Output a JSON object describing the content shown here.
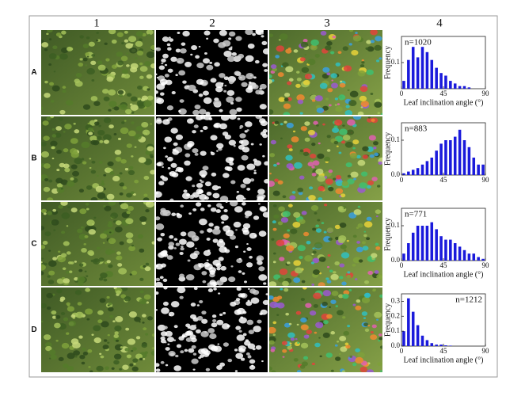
{
  "column_labels": [
    "1",
    "2",
    "3",
    "4"
  ],
  "row_labels": [
    "A",
    "B",
    "C",
    "D"
  ],
  "chart_data": [
    {
      "type": "histogram",
      "annotation": "n=1020",
      "annotation_position": "upper left",
      "color": "#1a1adb",
      "bins": [
        0,
        5,
        10,
        15,
        20,
        25,
        30,
        35,
        40,
        45,
        50,
        55,
        60,
        65,
        70,
        75,
        80,
        85,
        90
      ],
      "values": [
        0.03,
        0.11,
        0.16,
        0.12,
        0.16,
        0.14,
        0.11,
        0.08,
        0.06,
        0.05,
        0.03,
        0.02,
        0.01,
        0.01,
        0.005,
        0,
        0,
        0
      ],
      "xlim": [
        0,
        90
      ],
      "xticks": [
        0,
        45,
        90
      ],
      "ylim": [
        0,
        0.2
      ],
      "yticks": [
        0.1
      ],
      "xlabel": "Leaf inclination angle (°)",
      "ylabel": "Frequency"
    },
    {
      "type": "histogram",
      "annotation": "n=883",
      "annotation_position": "upper left",
      "color": "#1a1adb",
      "bins": [
        0,
        5,
        10,
        15,
        20,
        25,
        30,
        35,
        40,
        45,
        50,
        55,
        60,
        65,
        70,
        75,
        80,
        85,
        90
      ],
      "values": [
        0.005,
        0.01,
        0.015,
        0.02,
        0.03,
        0.04,
        0.05,
        0.07,
        0.09,
        0.1,
        0.1,
        0.11,
        0.13,
        0.1,
        0.08,
        0.05,
        0.03,
        0.03
      ],
      "xlim": [
        0,
        90
      ],
      "xticks": [
        0,
        45,
        90
      ],
      "ylim": [
        0,
        0.15
      ],
      "yticks": [
        {
          "value": 0,
          "label": "0.0"
        },
        0.1
      ],
      "ylabel": "Frequency"
    },
    {
      "type": "histogram",
      "annotation": "n=771",
      "annotation_position": "upper left",
      "color": "#1a1adb",
      "bins": [
        0,
        5,
        10,
        15,
        20,
        25,
        30,
        35,
        40,
        45,
        50,
        55,
        60,
        65,
        70,
        75,
        80,
        85,
        90
      ],
      "values": [
        0.02,
        0.05,
        0.08,
        0.1,
        0.1,
        0.1,
        0.11,
        0.09,
        0.07,
        0.06,
        0.06,
        0.05,
        0.04,
        0.03,
        0.02,
        0.02,
        0.01,
        0.005
      ],
      "xlim": [
        0,
        90
      ],
      "xticks": [
        0,
        45,
        90
      ],
      "ylim": [
        0,
        0.15
      ],
      "yticks": [
        {
          "value": 0,
          "label": "0.0"
        },
        0.1
      ],
      "xlabel": "Leaf inclination angle (°)",
      "ylabel": "Frequency"
    },
    {
      "type": "histogram",
      "annotation": "n=1212",
      "annotation_position": "upper right",
      "color": "#1a1adb",
      "bins": [
        0,
        5,
        10,
        15,
        20,
        25,
        30,
        35,
        40,
        45,
        50,
        55,
        60,
        65,
        70,
        75,
        80,
        85,
        90
      ],
      "values": [
        0.1,
        0.32,
        0.23,
        0.14,
        0.07,
        0.04,
        0.02,
        0.01,
        0.01,
        0.005,
        0.003,
        0,
        0,
        0,
        0,
        0,
        0,
        0
      ],
      "xlim": [
        0,
        90
      ],
      "xticks": [
        0,
        45,
        90
      ],
      "ylim": [
        0,
        0.35
      ],
      "yticks": [
        {
          "value": 0,
          "label": "0.0"
        },
        0.1,
        0.2,
        0.3
      ],
      "xlabel": "Leaf inclination angle (°)",
      "ylabel": "Frequency"
    }
  ]
}
